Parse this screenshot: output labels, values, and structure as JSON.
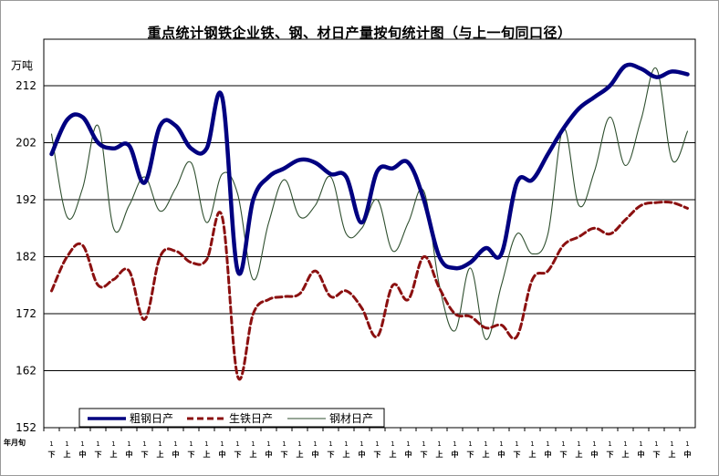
{
  "chart_data": {
    "type": "line",
    "title": "重点统计钢铁企业铁、钢、材日产量按旬统计图（与上一旬同口径）",
    "ylabel": "万吨",
    "xlabel": "年月旬",
    "ylim": [
      152,
      212
    ],
    "yticks": [
      152,
      162,
      172,
      182,
      192,
      202,
      212
    ],
    "grid": true,
    "legend_position": "bottom-left",
    "x": [
      "1",
      "2",
      "3",
      "4",
      "5",
      "6",
      "7",
      "8",
      "9",
      "10",
      "11",
      "12",
      "13",
      "14",
      "15",
      "16",
      "17",
      "18",
      "19",
      "20",
      "21",
      "22",
      "23",
      "24",
      "25",
      "26",
      "27",
      "28",
      "29",
      "30",
      "31",
      "32",
      "33",
      "34",
      "35",
      "36",
      "37",
      "38",
      "39",
      "40",
      "41",
      "42"
    ],
    "xticks_top": [
      "1",
      "1",
      "1",
      "1",
      "1",
      "1",
      "1",
      "1",
      "1",
      "1",
      "1",
      "1",
      "1",
      "1",
      "1",
      "1",
      "1",
      "1",
      "1",
      "1",
      "1",
      "1",
      "1",
      "1",
      "1",
      "1",
      "1",
      "1",
      "1",
      "1",
      "1",
      "1",
      "1",
      "1",
      "1",
      "1",
      "1",
      "1",
      "1",
      "1",
      "1",
      "1"
    ],
    "xticks_bottom": [
      "下",
      "上",
      "中",
      "下",
      "上",
      "中",
      "下",
      "上",
      "中",
      "下",
      "上",
      "中",
      "下",
      "上",
      "中",
      "下",
      "上",
      "中",
      "下",
      "上",
      "中",
      "下",
      "上",
      "中",
      "下",
      "上",
      "中",
      "下",
      "上",
      "中",
      "下",
      "上",
      "中",
      "下",
      "上",
      "中",
      "下",
      "上",
      "中",
      "下",
      "上",
      "中"
    ],
    "series": [
      {
        "name": "粗钢日产",
        "color": "#000080",
        "style": "solid-thick",
        "values": [
          200.0,
          206.0,
          206.5,
          202.0,
          201.0,
          201.5,
          195.0,
          205.0,
          205.0,
          201.0,
          201.0,
          210.0,
          179.5,
          192.0,
          196.0,
          197.5,
          199.0,
          198.5,
          196.5,
          196.0,
          188.0,
          197.0,
          197.5,
          198.5,
          192.0,
          182.0,
          180.0,
          181.0,
          183.5,
          182.5,
          195.0,
          195.5,
          200.0,
          204.5,
          208.0,
          210.0,
          212.0,
          215.5,
          215.0,
          213.5,
          214.5,
          214.0
        ]
      },
      {
        "name": "生铁日产",
        "color": "#8b1010",
        "style": "dashed-thick",
        "values": [
          176.0,
          182.0,
          184.0,
          177.0,
          178.0,
          179.5,
          171.0,
          182.0,
          183.0,
          181.0,
          181.5,
          189.0,
          161.0,
          172.0,
          174.5,
          175.0,
          175.5,
          179.5,
          175.0,
          176.0,
          173.0,
          168.0,
          177.0,
          174.5,
          182.0,
          176.5,
          172.0,
          171.5,
          169.5,
          170.0,
          168.0,
          178.0,
          179.5,
          184.0,
          185.5,
          187.0,
          186.0,
          188.5,
          191.0,
          191.5,
          191.5,
          190.5
        ]
      },
      {
        "name": "钢材日产",
        "color": "#2f4f2f",
        "style": "thin",
        "values": [
          203.5,
          189.0,
          194.0,
          205.0,
          187.0,
          191.0,
          196.0,
          190.0,
          194.0,
          198.5,
          188.0,
          196.5,
          193.0,
          178.0,
          188.0,
          195.5,
          189.0,
          191.0,
          196.0,
          186.0,
          187.0,
          192.0,
          183.0,
          188.0,
          193.5,
          177.0,
          169.0,
          180.0,
          167.5,
          177.0,
          186.0,
          182.5,
          186.0,
          204.5,
          191.0,
          197.0,
          206.5,
          198.0,
          206.0,
          215.0,
          199.0,
          204.0
        ]
      }
    ]
  }
}
